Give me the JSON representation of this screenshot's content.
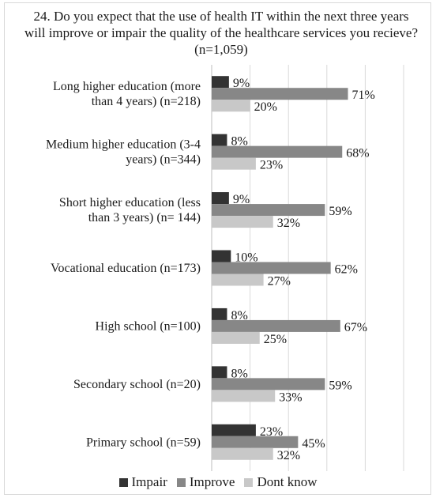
{
  "chart_data": {
    "type": "bar",
    "orientation": "horizontal",
    "title": "24. Do you expect that the use of health IT within the next three years will improve or impair the quality of the healthcare services you recieve? (n=1,059)",
    "xlabel": "",
    "ylabel": "",
    "xlim": [
      0,
      100
    ],
    "grid": true,
    "legend_position": "bottom",
    "value_suffix": "%",
    "categories": [
      [
        "Long higher education (more",
        "than 4 years) (n=218)"
      ],
      [
        "Medium higher education (3-4",
        "years) (n=344)"
      ],
      [
        "Short higher education (less",
        "than 3 years) (n= 144)"
      ],
      [
        "Vocational education (n=173)"
      ],
      [
        "High school (n=100)"
      ],
      [
        "Secondary school (n=20)"
      ],
      [
        "Primary school (n=59)"
      ]
    ],
    "series": [
      {
        "name": "Impair",
        "color": "#333333",
        "values": [
          9,
          8,
          9,
          10,
          8,
          8,
          23
        ]
      },
      {
        "name": "Improve",
        "color": "#878787",
        "values": [
          71,
          68,
          59,
          62,
          67,
          59,
          45
        ]
      },
      {
        "name": "Dont know",
        "color": "#c8c8c8",
        "values": [
          20,
          23,
          32,
          27,
          25,
          33,
          32
        ]
      }
    ]
  }
}
